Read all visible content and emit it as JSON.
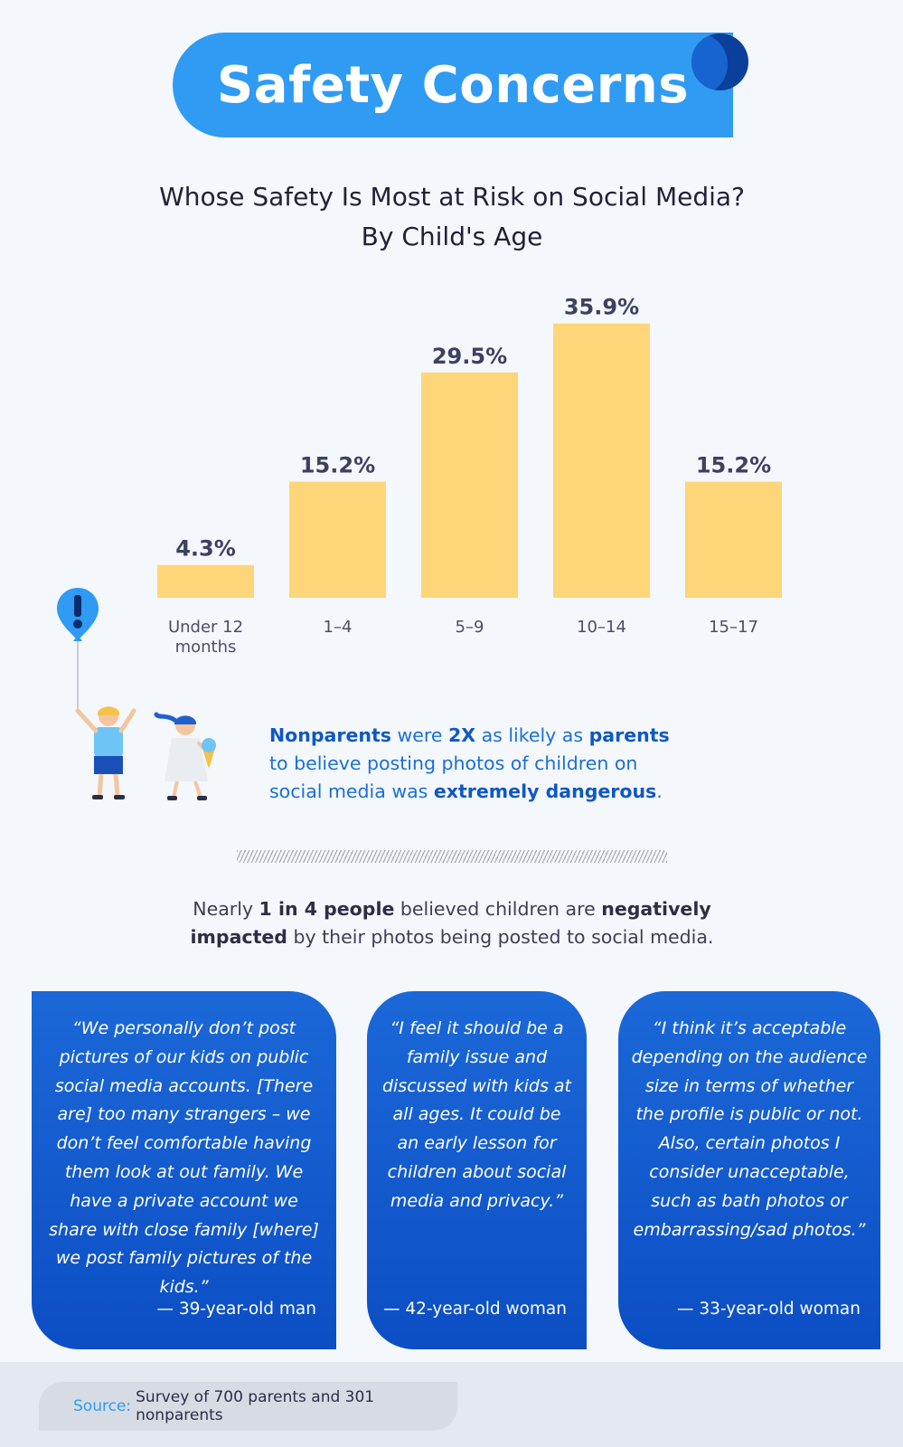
{
  "header": {
    "title": "Safety Concerns"
  },
  "subtitle": {
    "line1": "Whose Safety Is Most at Risk on Social Media?",
    "line2": "By Child's Age"
  },
  "chart_data": {
    "type": "bar",
    "categories": [
      "Under 12 months",
      "1–4",
      "5–9",
      "10–14",
      "15–17"
    ],
    "category_lines": [
      [
        "Under 12",
        "months"
      ],
      [
        "1–4"
      ],
      [
        "5–9"
      ],
      [
        "10–14"
      ],
      [
        "15–17"
      ]
    ],
    "values": [
      4.3,
      15.2,
      29.5,
      35.9,
      15.2
    ],
    "data_labels": [
      "4.3%",
      "15.2%",
      "29.5%",
      "35.9%",
      "15.2%"
    ],
    "ylim": [
      0,
      38
    ],
    "grid": false,
    "bar_color": "#fed679",
    "label_color": "#3c4160"
  },
  "callout": {
    "parts": [
      {
        "text": "Nonparents",
        "bold": true
      },
      {
        "text": " were ",
        "bold": false
      },
      {
        "text": "2X",
        "bold": true
      },
      {
        "text": " as likely as ",
        "bold": false
      },
      {
        "text": "parents",
        "bold": true
      },
      {
        "text": " to believe posting photos of children on social media was ",
        "bold": false
      },
      {
        "text": "extremely dangerous",
        "bold": true
      },
      {
        "text": ".",
        "bold": false
      }
    ]
  },
  "stat": {
    "parts": [
      {
        "text": "Nearly ",
        "bold": false
      },
      {
        "text": "1 in 4 people",
        "bold": true
      },
      {
        "text": " believed children are ",
        "bold": false
      },
      {
        "text": "negatively impacted",
        "bold": true
      },
      {
        "text": " by their photos being posted to social media.",
        "bold": false
      }
    ]
  },
  "quotes": [
    {
      "text": "“We personally don’t post pictures of our kids on public social media accounts. [There are] too many strangers – we don’t feel comfortable having them look at out family. We have a private account we share with close family [where] we post family pictures of the kids.”",
      "attribution": "— 39-year-old man"
    },
    {
      "text": "“I feel it should be a family issue and discussed with kids at all ages. It could be an early lesson for children about social media and privacy.”",
      "attribution": "— 42-year-old woman"
    },
    {
      "text": "“I think it’s acceptable depending on the audience size in terms of whether the profile is public or not. Also, certain photos I consider unacceptable, such as bath photos or embarrassing/sad photos.”",
      "attribution": "— 33-year-old woman"
    }
  ],
  "footer": {
    "source_label": "Source:",
    "source_text": "Survey of 700 parents and 301 nonparents"
  },
  "icons": {
    "balloon": "alert-balloon-icon",
    "kids": "kids-illustration-icon"
  },
  "colors": {
    "brand_blue": "#2f9bf3",
    "dark_blue": "#0c4ec4",
    "bar_yellow": "#fed679"
  }
}
